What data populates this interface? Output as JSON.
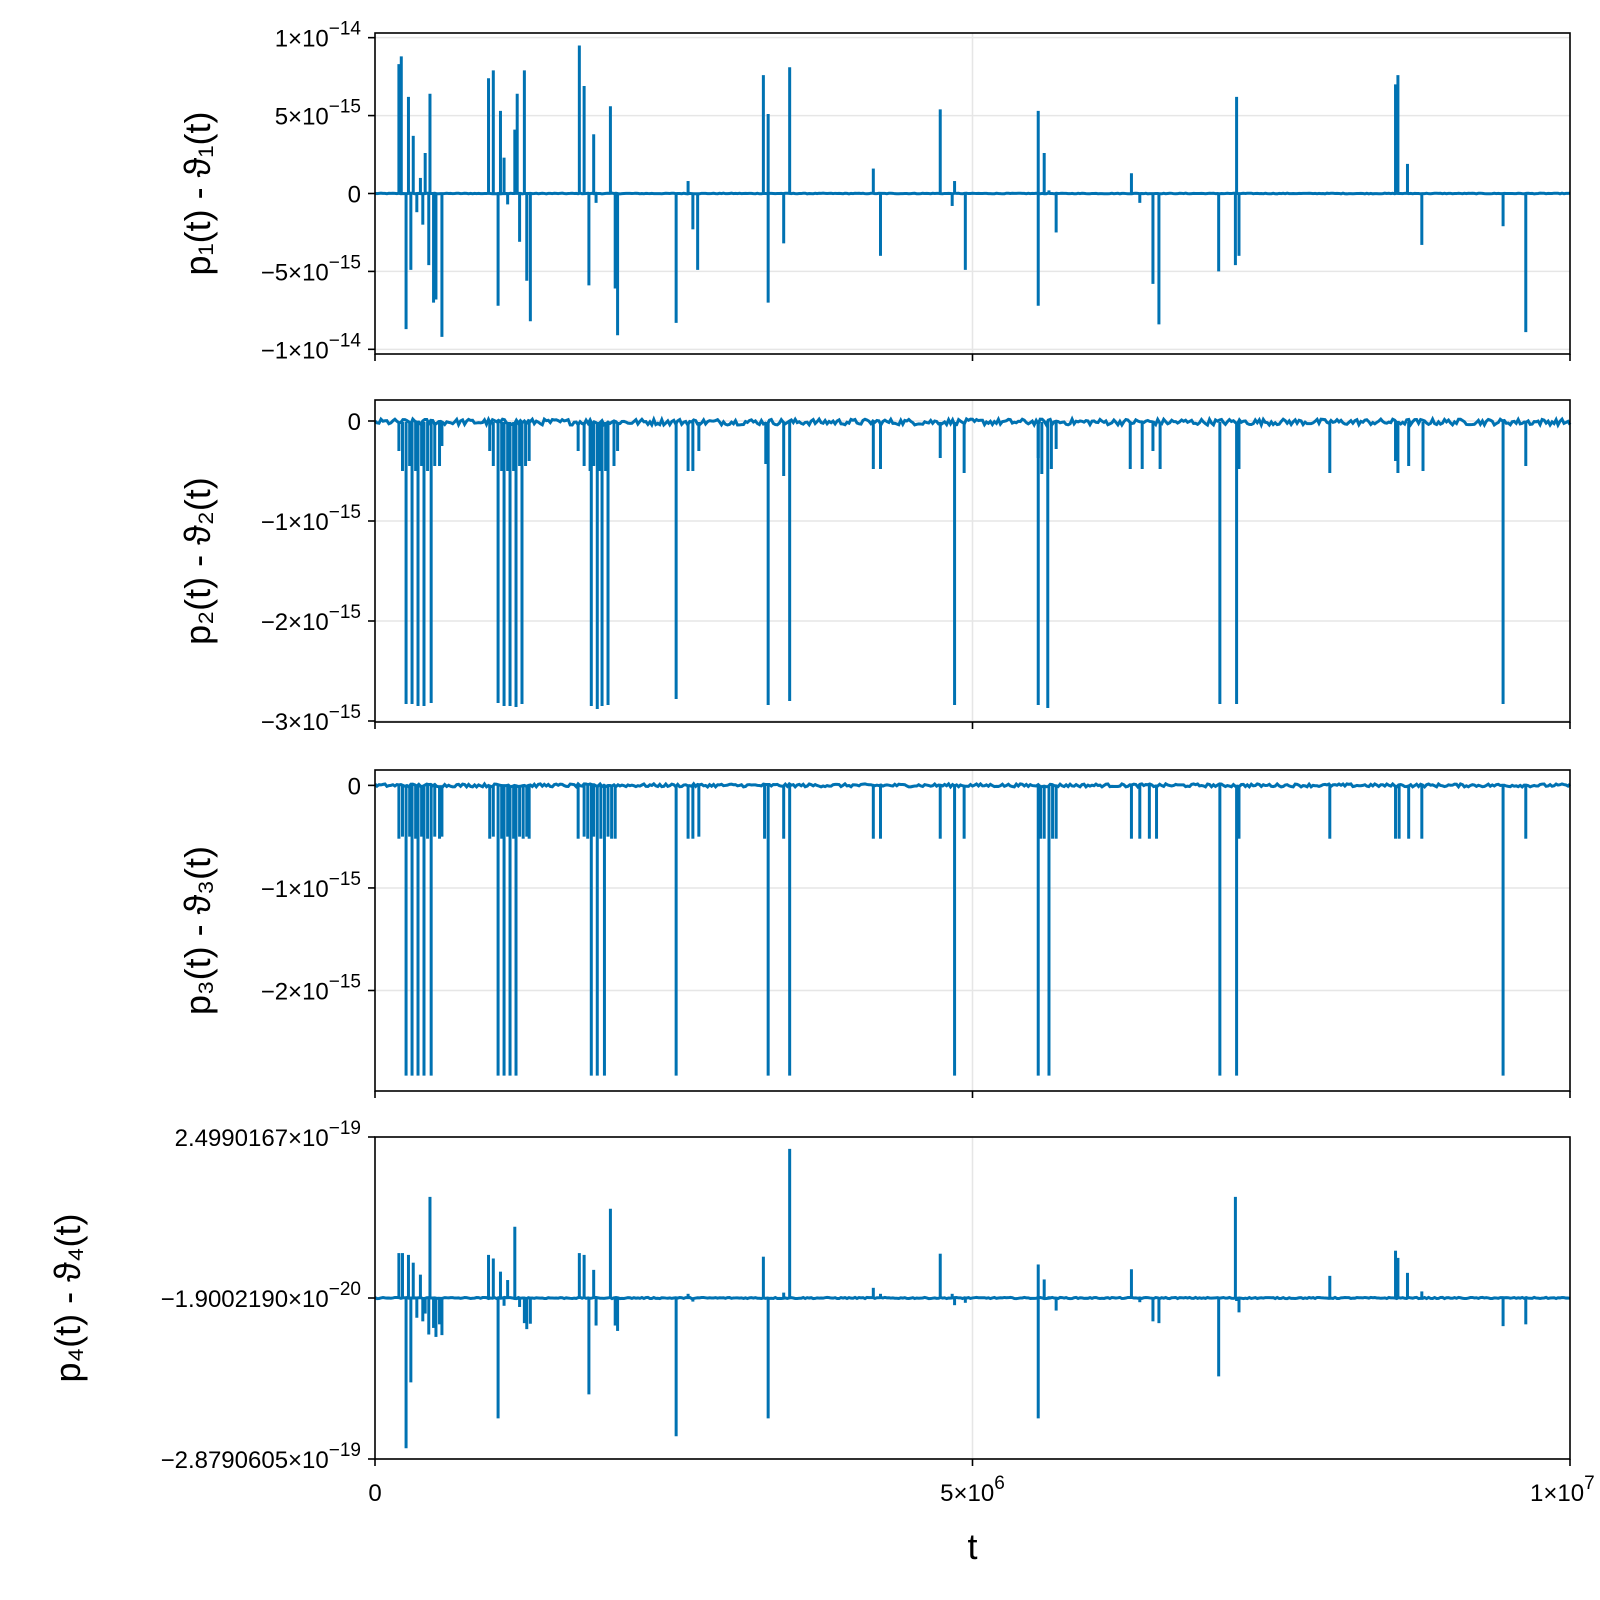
{
  "chart_data": [
    {
      "type": "line",
      "ylabel": "p₁(t) - ϑ₁(t)",
      "xlabel": "",
      "xlim": [
        0,
        10000000
      ],
      "ylim": [
        -1.03e-14,
        1.03e-14
      ],
      "grid": true,
      "color": "#0072B2",
      "baseline": 0,
      "noise": 2e-17,
      "yticks": [
        {
          "v": 1e-14,
          "m": "1×10",
          "e": "−14"
        },
        {
          "v": 5e-15,
          "m": "5×10",
          "e": "−15"
        },
        {
          "v": 0,
          "m": "0",
          "e": ""
        },
        {
          "v": -5e-15,
          "m": "−5×10",
          "e": "−15"
        },
        {
          "v": -1e-14,
          "m": "−1×10",
          "e": "−14"
        }
      ],
      "spikes": [
        [
          200000,
          8.3e-15
        ],
        [
          220000,
          8.8e-15
        ],
        [
          260000,
          -8.7e-15
        ],
        [
          280000,
          6.2e-15
        ],
        [
          300000,
          -4.9e-15
        ],
        [
          320000,
          3.7e-15
        ],
        [
          350000,
          -1.2e-15
        ],
        [
          380000,
          1e-15
        ],
        [
          400000,
          -2e-15
        ],
        [
          420000,
          2.6e-15
        ],
        [
          450000,
          -4.6e-15
        ],
        [
          460000,
          6.4e-15
        ],
        [
          490000,
          -7e-15
        ],
        [
          510000,
          -6.8e-15
        ],
        [
          560000,
          -9.2e-15
        ],
        [
          950000,
          7.4e-15
        ],
        [
          990000,
          7.9e-15
        ],
        [
          1030000,
          -7.2e-15
        ],
        [
          1050000,
          5.3e-15
        ],
        [
          1080000,
          2.3e-15
        ],
        [
          1110000,
          -7e-16
        ],
        [
          1170000,
          4.1e-15
        ],
        [
          1190000,
          6.4e-15
        ],
        [
          1210000,
          -3.1e-15
        ],
        [
          1250000,
          7.9e-15
        ],
        [
          1270000,
          -5.6e-15
        ],
        [
          1300000,
          -8.2e-15
        ],
        [
          1710000,
          9.5e-15
        ],
        [
          1750000,
          6.9e-15
        ],
        [
          1790000,
          -5.9e-15
        ],
        [
          1830000,
          3.8e-15
        ],
        [
          1850000,
          -6e-16
        ],
        [
          1970000,
          5.6e-15
        ],
        [
          2010000,
          -6.1e-15
        ],
        [
          2030000,
          -9.1e-15
        ],
        [
          2520000,
          -8.3e-15
        ],
        [
          2620000,
          8e-16
        ],
        [
          2660000,
          -2.3e-15
        ],
        [
          2700000,
          -4.9e-15
        ],
        [
          3250000,
          7.6e-15
        ],
        [
          3290000,
          -7e-15
        ],
        [
          3290000,
          5.1e-15
        ],
        [
          3420000,
          -3.2e-15
        ],
        [
          3470000,
          8.1e-15
        ],
        [
          4170000,
          1.6e-15
        ],
        [
          4230000,
          -4e-15
        ],
        [
          4730000,
          5.4e-15
        ],
        [
          4830000,
          -8e-16
        ],
        [
          4850000,
          8e-16
        ],
        [
          4940000,
          -4.9e-15
        ],
        [
          5550000,
          5.3e-15
        ],
        [
          5550000,
          -7.2e-15
        ],
        [
          5600000,
          2.6e-15
        ],
        [
          5640000,
          2e-16
        ],
        [
          5700000,
          -2.5e-15
        ],
        [
          6330000,
          1.3e-15
        ],
        [
          6400000,
          -6e-16
        ],
        [
          6510000,
          -5.8e-15
        ],
        [
          6560000,
          -8.4e-15
        ],
        [
          7060000,
          -5e-15
        ],
        [
          7200000,
          -4.6e-15
        ],
        [
          7210000,
          6.2e-15
        ],
        [
          7230000,
          -4e-15
        ],
        [
          8540000,
          7e-15
        ],
        [
          8560000,
          7.6e-15
        ],
        [
          8640000,
          1.9e-15
        ],
        [
          8760000,
          -3.3e-15
        ],
        [
          9440000,
          -2.1e-15
        ],
        [
          9630000,
          -8.9e-15
        ]
      ]
    },
    {
      "type": "line",
      "ylabel": "p₂(t) - ϑ₂(t)",
      "xlabel": "",
      "xlim": [
        0,
        10000000
      ],
      "ylim": [
        -3.01e-15,
        2.1e-16
      ],
      "grid": true,
      "color": "#0072B2",
      "baseline": -1e-17,
      "noise": 3e-17,
      "yticks": [
        {
          "v": 0,
          "m": "0",
          "e": ""
        },
        {
          "v": -1e-15,
          "m": "−1×10",
          "e": "−15"
        },
        {
          "v": -2e-15,
          "m": "−2×10",
          "e": "−15"
        },
        {
          "v": -3e-15,
          "m": "−3×10",
          "e": "−15"
        }
      ],
      "spikes": [
        [
          200000,
          -3e-16
        ],
        [
          230000,
          -5e-16
        ],
        [
          260000,
          -2.83e-15
        ],
        [
          290000,
          -4.5e-16
        ],
        [
          310000,
          -2.83e-15
        ],
        [
          340000,
          -5e-16
        ],
        [
          360000,
          -2.85e-15
        ],
        [
          390000,
          -4.5e-16
        ],
        [
          410000,
          -2.85e-15
        ],
        [
          440000,
          -5e-16
        ],
        [
          470000,
          -2.82e-15
        ],
        [
          500000,
          -4.5e-16
        ],
        [
          540000,
          -4.5e-16
        ],
        [
          560000,
          -2.5e-16
        ],
        [
          960000,
          -3e-16
        ],
        [
          990000,
          -4.5e-16
        ],
        [
          1030000,
          -2.82e-15
        ],
        [
          1060000,
          -5e-16
        ],
        [
          1080000,
          -2.85e-15
        ],
        [
          1110000,
          -5e-16
        ],
        [
          1130000,
          -2.85e-15
        ],
        [
          1160000,
          -5e-16
        ],
        [
          1180000,
          -2.86e-15
        ],
        [
          1210000,
          -4.5e-16
        ],
        [
          1230000,
          -2.83e-15
        ],
        [
          1260000,
          -4.5e-16
        ],
        [
          1290000,
          -4e-16
        ],
        [
          1700000,
          -3e-16
        ],
        [
          1750000,
          -4.5e-16
        ],
        [
          1800000,
          -5e-16
        ],
        [
          1810000,
          -2.85e-15
        ],
        [
          1830000,
          -4.5e-16
        ],
        [
          1860000,
          -2.88e-15
        ],
        [
          1880000,
          -5e-16
        ],
        [
          1900000,
          -2.85e-15
        ],
        [
          1930000,
          -5e-16
        ],
        [
          1950000,
          -2.84e-15
        ],
        [
          2000000,
          -4.5e-16
        ],
        [
          2030000,
          -3e-16
        ],
        [
          2520000,
          -2.78e-15
        ],
        [
          2620000,
          -5e-16
        ],
        [
          2660000,
          -5e-16
        ],
        [
          2710000,
          -3e-16
        ],
        [
          3270000,
          -4.3e-16
        ],
        [
          3290000,
          -2.84e-15
        ],
        [
          3420000,
          -5.5e-16
        ],
        [
          3470000,
          -2.8e-15
        ],
        [
          4170000,
          -4.8e-16
        ],
        [
          4230000,
          -4.8e-16
        ],
        [
          4730000,
          -3.7e-16
        ],
        [
          4850000,
          -2.84e-15
        ],
        [
          4930000,
          -5.2e-16
        ],
        [
          5550000,
          -3.7e-16
        ],
        [
          5550000,
          -2.84e-15
        ],
        [
          5580000,
          -5.3e-16
        ],
        [
          5630000,
          -2.87e-15
        ],
        [
          5660000,
          -4.8e-16
        ],
        [
          5700000,
          -2.8e-16
        ],
        [
          6320000,
          -4.8e-16
        ],
        [
          6420000,
          -4.8e-16
        ],
        [
          6510000,
          -3e-16
        ],
        [
          6570000,
          -4.8e-16
        ],
        [
          7070000,
          -2.83e-15
        ],
        [
          7210000,
          -2.83e-15
        ],
        [
          7230000,
          -4.8e-16
        ],
        [
          7990000,
          -5.2e-16
        ],
        [
          8540000,
          -4e-16
        ],
        [
          8560000,
          -5.2e-16
        ],
        [
          8650000,
          -4.5e-16
        ],
        [
          8770000,
          -5e-16
        ],
        [
          9440000,
          -2.83e-15
        ],
        [
          9630000,
          -4.5e-16
        ]
      ]
    },
    {
      "type": "line",
      "ylabel": "p₃(t) - ϑ₃(t)",
      "xlabel": "",
      "xlim": [
        0,
        10000000
      ],
      "ylim": [
        -2.98e-15,
        1.5e-16
      ],
      "grid": true,
      "color": "#0072B2",
      "baseline": 0,
      "noise": 1.5e-17,
      "yticks": [
        {
          "v": 0,
          "m": "0",
          "e": ""
        },
        {
          "v": -1e-15,
          "m": "−1×10",
          "e": "−15"
        },
        {
          "v": -2e-15,
          "m": "−2×10",
          "e": "−15"
        }
      ],
      "spikes": [
        [
          200000,
          -5.2e-16
        ],
        [
          230000,
          -5e-16
        ],
        [
          260000,
          -2.83e-15
        ],
        [
          290000,
          -5e-16
        ],
        [
          310000,
          -2.83e-15
        ],
        [
          340000,
          -5.2e-16
        ],
        [
          360000,
          -2.83e-15
        ],
        [
          390000,
          -5e-16
        ],
        [
          410000,
          -2.83e-15
        ],
        [
          440000,
          -5.2e-16
        ],
        [
          470000,
          -2.83e-15
        ],
        [
          500000,
          -5e-16
        ],
        [
          540000,
          -5.2e-16
        ],
        [
          560000,
          -5e-16
        ],
        [
          960000,
          -5.2e-16
        ],
        [
          990000,
          -5e-16
        ],
        [
          1030000,
          -2.83e-15
        ],
        [
          1060000,
          -5.2e-16
        ],
        [
          1080000,
          -2.83e-15
        ],
        [
          1110000,
          -5e-16
        ],
        [
          1130000,
          -2.83e-15
        ],
        [
          1160000,
          -5.2e-16
        ],
        [
          1180000,
          -2.83e-15
        ],
        [
          1210000,
          -5e-16
        ],
        [
          1240000,
          -5.2e-16
        ],
        [
          1270000,
          -5e-16
        ],
        [
          1290000,
          -5.2e-16
        ],
        [
          1700000,
          -5.2e-16
        ],
        [
          1750000,
          -5e-16
        ],
        [
          1780000,
          -5.2e-16
        ],
        [
          1810000,
          -2.83e-15
        ],
        [
          1830000,
          -5e-16
        ],
        [
          1860000,
          -2.83e-15
        ],
        [
          1890000,
          -5.2e-16
        ],
        [
          1920000,
          -2.83e-15
        ],
        [
          1950000,
          -5e-16
        ],
        [
          1980000,
          -5.2e-16
        ],
        [
          2010000,
          -5.2e-16
        ],
        [
          2520000,
          -2.83e-15
        ],
        [
          2620000,
          -5.2e-16
        ],
        [
          2660000,
          -5.2e-16
        ],
        [
          2710000,
          -5e-16
        ],
        [
          3260000,
          -5.2e-16
        ],
        [
          3290000,
          -2.83e-15
        ],
        [
          3420000,
          -5.2e-16
        ],
        [
          3470000,
          -2.83e-15
        ],
        [
          4170000,
          -5.2e-16
        ],
        [
          4230000,
          -5.2e-16
        ],
        [
          4730000,
          -5.2e-16
        ],
        [
          4850000,
          -2.83e-15
        ],
        [
          4930000,
          -5.2e-16
        ],
        [
          5550000,
          -2.83e-15
        ],
        [
          5570000,
          -5.2e-16
        ],
        [
          5600000,
          -5.2e-16
        ],
        [
          5640000,
          -2.83e-15
        ],
        [
          5670000,
          -5.2e-16
        ],
        [
          5700000,
          -5.2e-16
        ],
        [
          6330000,
          -5.2e-16
        ],
        [
          6400000,
          -5.2e-16
        ],
        [
          6480000,
          -5.2e-16
        ],
        [
          6540000,
          -5.2e-16
        ],
        [
          7070000,
          -2.83e-15
        ],
        [
          7210000,
          -2.83e-15
        ],
        [
          7230000,
          -5.2e-16
        ],
        [
          7990000,
          -5.2e-16
        ],
        [
          8540000,
          -5.2e-16
        ],
        [
          8570000,
          -5.2e-16
        ],
        [
          8650000,
          -5.2e-16
        ],
        [
          8760000,
          -5.2e-16
        ],
        [
          9440000,
          -2.83e-15
        ],
        [
          9630000,
          -5.2e-16
        ]
      ]
    },
    {
      "type": "line",
      "ylabel": "p₄(t) - ϑ₄(t)",
      "xlabel": "t",
      "xlim": [
        0,
        10000000
      ],
      "ylim": [
        -2.8790605e-19,
        2.4990167e-19
      ],
      "grid": true,
      "color": "#0072B2",
      "baseline": -1.900219e-20,
      "noise": 1e-21,
      "yticks": [
        {
          "v": 2.4990167e-19,
          "m": "2.4990167×10",
          "e": "−19"
        },
        {
          "v": -1.900219e-20,
          "m": "−1.9002190×10",
          "e": "−20"
        },
        {
          "v": -2.8790605e-19,
          "m": "−2.8790605×10",
          "e": "−19"
        }
      ],
      "xticks": [
        {
          "v": 0,
          "m": "0",
          "e": ""
        },
        {
          "v": 5000000,
          "m": "5×10",
          "e": "6"
        },
        {
          "v": 10000000,
          "m": "1×10",
          "e": "7"
        }
      ],
      "spikes": [
        [
          200000,
          5.6e-20
        ],
        [
          230000,
          5.6e-20
        ],
        [
          260000,
          -2.7e-19
        ],
        [
          280000,
          5.3e-20
        ],
        [
          300000,
          -1.6e-19
        ],
        [
          320000,
          4e-20
        ],
        [
          350000,
          -5.2e-20
        ],
        [
          380000,
          2e-20
        ],
        [
          400000,
          -5.8e-20
        ],
        [
          420000,
          -4.5e-20
        ],
        [
          450000,
          -8e-20
        ],
        [
          460000,
          1.5e-19
        ],
        [
          490000,
          -6.9e-20
        ],
        [
          510000,
          -8.4e-20
        ],
        [
          540000,
          -6.3e-20
        ],
        [
          560000,
          -8.1e-20
        ],
        [
          950000,
          5.3e-20
        ],
        [
          990000,
          4.7e-20
        ],
        [
          1030000,
          -2.2e-19
        ],
        [
          1050000,
          2.5e-20
        ],
        [
          1080000,
          -3.2e-20
        ],
        [
          1110000,
          1.1e-20
        ],
        [
          1170000,
          1e-19
        ],
        [
          1190000,
          -2.2e-20
        ],
        [
          1210000,
          -3.4e-20
        ],
        [
          1250000,
          -6.1e-20
        ],
        [
          1270000,
          -7.1e-20
        ],
        [
          1300000,
          -6.2e-20
        ],
        [
          1710000,
          5.6e-20
        ],
        [
          1750000,
          5.3e-20
        ],
        [
          1790000,
          -1.8e-19
        ],
        [
          1830000,
          2.8e-20
        ],
        [
          1850000,
          -6.5e-20
        ],
        [
          1970000,
          1.3e-19
        ],
        [
          2010000,
          -6.5e-20
        ],
        [
          2030000,
          -7.4e-20
        ],
        [
          2520000,
          -2.5e-19
        ],
        [
          2620000,
          -1.2e-20
        ],
        [
          2660000,
          -2.5e-20
        ],
        [
          3250000,
          5e-20
        ],
        [
          3290000,
          -2.2e-19
        ],
        [
          3420000,
          -1e-20
        ],
        [
          3470000,
          2.3e-19
        ],
        [
          4170000,
          -2e-21
        ],
        [
          4230000,
          -1.2e-20
        ],
        [
          4730000,
          5.5e-20
        ],
        [
          4830000,
          -1.2e-20
        ],
        [
          4850000,
          -3.1e-20
        ],
        [
          4940000,
          -2.7e-20
        ],
        [
          5550000,
          3.7e-20
        ],
        [
          5550000,
          -2.2e-19
        ],
        [
          5600000,
          1.2e-20
        ],
        [
          5640000,
          -1.6e-20
        ],
        [
          5700000,
          -4e-20
        ],
        [
          6330000,
          2.9e-20
        ],
        [
          6400000,
          -2.6e-20
        ],
        [
          6510000,
          -5.8e-20
        ],
        [
          6560000,
          -6.1e-20
        ],
        [
          7060000,
          -1.5e-19
        ],
        [
          7200000,
          1.5e-19
        ],
        [
          7210000,
          -2.4e-20
        ],
        [
          7230000,
          -4.3e-20
        ],
        [
          7990000,
          1.8e-20
        ],
        [
          8540000,
          6e-20
        ],
        [
          8560000,
          4.8e-20
        ],
        [
          8640000,
          2.3e-20
        ],
        [
          8760000,
          -8e-21
        ],
        [
          9440000,
          -6.6e-20
        ],
        [
          9630000,
          -6.3e-20
        ]
      ]
    }
  ]
}
